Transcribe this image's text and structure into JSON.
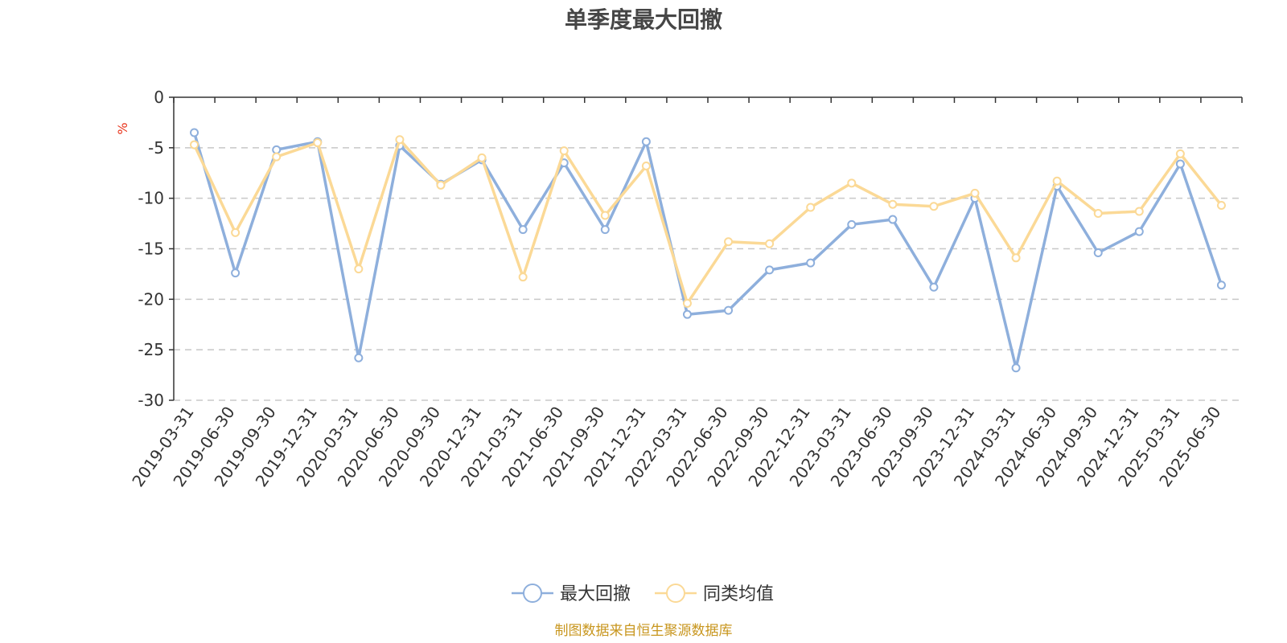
{
  "chart_data": {
    "type": "line",
    "title": "单季度最大回撤",
    "ylabel": "%",
    "xlabel": "",
    "ylim": [
      -30,
      0
    ],
    "yticks": [
      0,
      -5,
      -10,
      -15,
      -20,
      -25,
      -30
    ],
    "grid": true,
    "legend_position": "bottom",
    "categories": [
      "2019-03-31",
      "2019-06-30",
      "2019-09-30",
      "2019-12-31",
      "2020-03-31",
      "2020-06-30",
      "2020-09-30",
      "2020-12-31",
      "2021-03-31",
      "2021-06-30",
      "2021-09-30",
      "2021-12-31",
      "2022-03-31",
      "2022-06-30",
      "2022-09-30",
      "2022-12-31",
      "2023-03-31",
      "2023-06-30",
      "2023-09-30",
      "2023-12-31",
      "2024-03-31",
      "2024-06-30",
      "2024-09-30",
      "2024-12-31",
      "2025-03-31",
      "2025-06-30"
    ],
    "series": [
      {
        "name": "最大回撤",
        "color": "#8eafdc",
        "values": [
          -3.5,
          -17.4,
          -5.2,
          -4.4,
          -25.8,
          -4.8,
          -8.6,
          -6.2,
          -13.1,
          -6.5,
          -13.1,
          -4.4,
          -21.5,
          -21.1,
          -17.1,
          -16.4,
          -12.6,
          -12.1,
          -18.8,
          -10.0,
          -26.8,
          -8.8,
          -15.4,
          -13.3,
          -6.6,
          -18.6
        ]
      },
      {
        "name": "同类均值",
        "color": "#fbd996",
        "values": [
          -4.7,
          -13.4,
          -5.9,
          -4.5,
          -17.0,
          -4.2,
          -8.7,
          -6.0,
          -17.8,
          -5.3,
          -11.7,
          -6.8,
          -20.4,
          -14.3,
          -14.5,
          -10.9,
          -8.5,
          -10.6,
          -10.8,
          -9.5,
          -15.9,
          -8.3,
          -11.5,
          -11.3,
          -5.6,
          -10.7
        ]
      }
    ],
    "source_text": "制图数据来自恒生聚源数据库"
  }
}
